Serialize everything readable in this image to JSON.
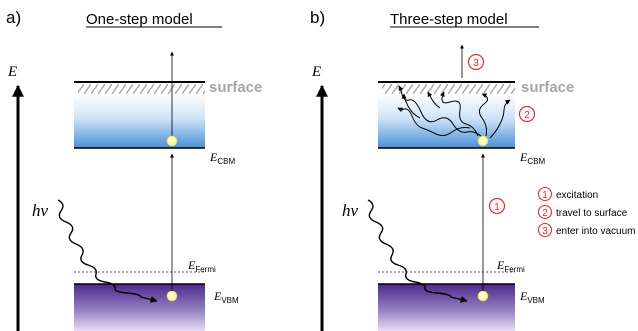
{
  "panel_a": {
    "letter": "a)",
    "title": "One-step model",
    "surface_label": "surface",
    "axis_label": "E",
    "photon_label": "hv",
    "levels": {
      "cbm": {
        "main": "E",
        "sub": "CBM"
      },
      "fermi": {
        "main": "E",
        "sub": "Fermi"
      },
      "vbm": {
        "main": "E",
        "sub": "VBM"
      }
    }
  },
  "panel_b": {
    "letter": "b)",
    "title": "Three-step model",
    "surface_label": "surface",
    "axis_label": "E",
    "photon_label": "hv",
    "levels": {
      "cbm": {
        "main": "E",
        "sub": "CBM"
      },
      "fermi": {
        "main": "E",
        "sub": "Fermi"
      },
      "vbm": {
        "main": "E",
        "sub": "VBM"
      }
    },
    "steps_on_diagram": [
      "1",
      "2",
      "3"
    ],
    "legend": [
      {
        "num": "1",
        "text": "excitation"
      },
      {
        "num": "2",
        "text": "travel to surface"
      },
      {
        "num": "3",
        "text": "enter into vacuum"
      }
    ]
  },
  "colors": {
    "step_red": "#e32b2b",
    "surface_gray": "#a6a6a6",
    "conduction_blue": "#4a90d9",
    "valence_purple": "#4b2a8c",
    "electron_yellow": "#f4f47a"
  }
}
